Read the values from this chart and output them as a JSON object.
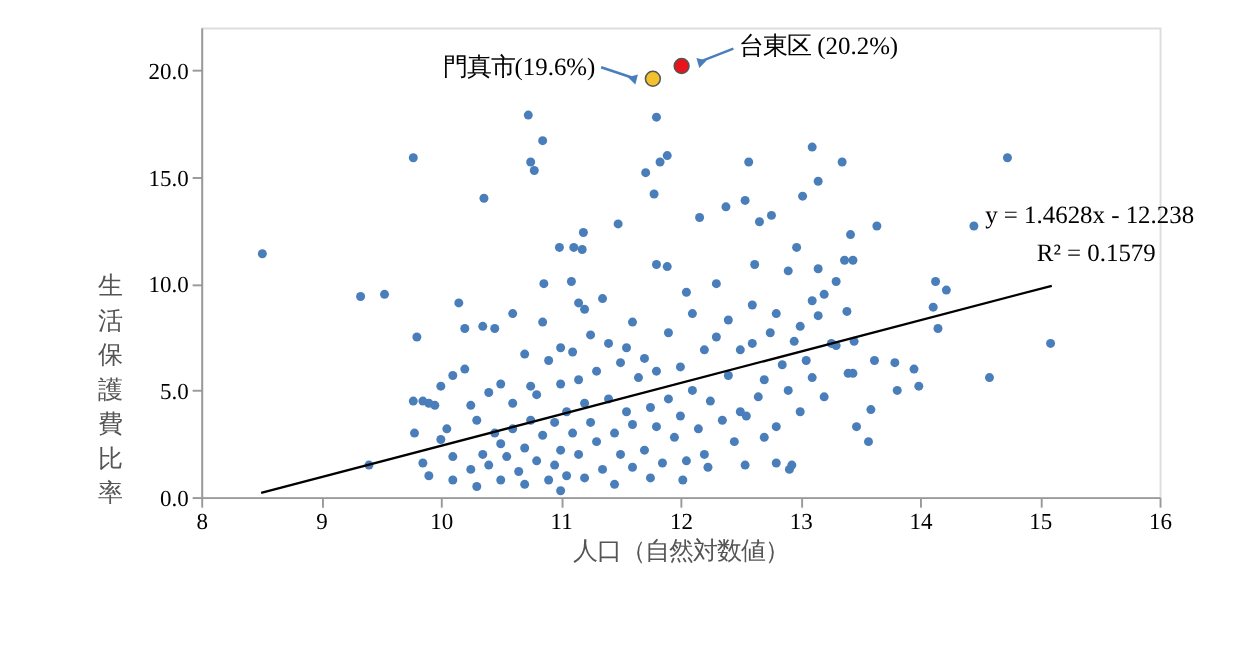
{
  "chart_data": {
    "type": "scatter",
    "xlabel": "人口（自然対数値）",
    "ylabel": "生活保護費比率",
    "xlim": [
      8,
      16
    ],
    "xticks": [
      8,
      9,
      10,
      11,
      12,
      13,
      14,
      15,
      16
    ],
    "ylim": [
      0,
      22
    ],
    "yticks": [
      {
        "value": 0,
        "label": "0.0"
      },
      {
        "value": 5,
        "label": "5.0"
      },
      {
        "value": 10,
        "label": "10.0"
      },
      {
        "value": 15,
        "label": "15.0"
      },
      {
        "value": 20,
        "label": "20.0"
      }
    ],
    "grid": false,
    "marker": "circle",
    "series": [
      {
        "color": "#4a7ebb",
        "x": [
          8.51,
          9.33,
          9.53,
          9.4,
          9.77,
          10.36,
          10.73,
          10.75,
          10.78,
          10.85,
          11.8,
          11.71,
          11.78,
          11.83,
          11.89,
          13.1,
          14.73,
          12.57,
          13.35,
          13.15,
          13.02,
          12.38,
          12.54,
          12.16,
          11.48,
          11.19,
          12.76,
          12.66,
          13.64,
          14.45,
          13.42,
          13.37,
          13.44,
          12.97,
          12.62,
          13.15,
          11.8,
          11.89,
          10.99,
          11.11,
          11.18,
          10.86,
          11.09,
          14.13,
          14.22,
          14.11,
          14.15,
          14.58,
          15.09,
          13.99,
          13.81,
          13.95,
          13.79,
          13.62,
          13.44,
          13.47,
          13.59,
          13.57,
          13.45,
          13.26,
          13.39,
          12.93,
          12.91,
          12.8,
          12.54,
          12.23,
          12.02,
          9.77,
          9.85,
          9.9,
          9.95,
          9.78,
          9.85,
          9.9,
          9.8,
          10.0,
          10.0,
          10.05,
          10.1,
          10.1,
          10.1,
          10.15,
          10.2,
          10.2,
          10.25,
          10.25,
          10.3,
          10.3,
          10.35,
          10.35,
          10.4,
          10.4,
          10.45,
          10.45,
          10.5,
          10.5,
          10.5,
          10.55,
          10.6,
          10.6,
          10.6,
          10.65,
          10.7,
          10.7,
          10.7,
          10.75,
          10.75,
          10.8,
          10.8,
          10.85,
          10.85,
          10.9,
          10.9,
          10.95,
          10.95,
          11.0,
          11.0,
          11.0,
          11.0,
          11.05,
          11.05,
          11.1,
          11.1,
          11.15,
          11.15,
          11.15,
          11.2,
          11.2,
          11.2,
          11.25,
          11.25,
          11.3,
          11.3,
          11.35,
          11.35,
          11.4,
          11.4,
          11.45,
          11.45,
          11.5,
          11.5,
          11.55,
          11.55,
          11.6,
          11.6,
          11.6,
          11.65,
          11.7,
          11.7,
          11.75,
          11.75,
          11.8,
          11.8,
          11.85,
          11.9,
          11.9,
          11.95,
          12.0,
          12.0,
          12.05,
          12.05,
          12.1,
          12.1,
          12.15,
          12.2,
          12.2,
          12.25,
          12.3,
          12.3,
          12.35,
          12.4,
          12.4,
          12.45,
          12.5,
          12.5,
          12.55,
          12.6,
          12.6,
          12.65,
          12.7,
          12.7,
          12.75,
          12.8,
          12.8,
          12.85,
          12.9,
          12.9,
          12.95,
          13.0,
          13.0,
          13.05,
          13.1,
          13.1,
          13.15,
          13.2,
          13.2,
          13.3,
          13.3,
          13.4
        ],
        "values": [
          11.4,
          9.4,
          9.5,
          1.5,
          15.9,
          14.0,
          17.9,
          15.7,
          15.3,
          16.7,
          17.8,
          15.2,
          14.2,
          15.7,
          16.0,
          16.4,
          15.9,
          15.7,
          15.7,
          14.8,
          14.1,
          13.6,
          13.9,
          13.1,
          12.8,
          12.4,
          13.2,
          12.9,
          12.7,
          12.7,
          12.3,
          11.1,
          11.1,
          11.7,
          10.9,
          10.7,
          10.9,
          10.8,
          11.7,
          11.7,
          11.6,
          10.0,
          10.1,
          10.1,
          9.7,
          8.9,
          7.9,
          5.6,
          7.2,
          5.2,
          5.0,
          6.0,
          6.3,
          6.4,
          5.8,
          3.3,
          4.1,
          2.6,
          7.3,
          7.2,
          8.7,
          1.5,
          1.3,
          1.6,
          1.5,
          1.4,
          0.8,
          4.5,
          4.5,
          4.4,
          4.3,
          3.0,
          1.6,
          1.0,
          7.5,
          5.2,
          2.7,
          3.2,
          1.9,
          0.8,
          5.7,
          9.1,
          7.9,
          6.0,
          4.3,
          1.3,
          3.6,
          0.5,
          8.0,
          2.0,
          4.9,
          1.5,
          7.9,
          3.0,
          5.3,
          2.5,
          0.8,
          1.9,
          4.4,
          8.6,
          3.2,
          1.2,
          6.7,
          2.3,
          0.6,
          5.2,
          3.6,
          1.7,
          4.8,
          8.2,
          2.9,
          0.8,
          6.4,
          3.5,
          1.5,
          7.0,
          5.3,
          2.2,
          0.3,
          4.0,
          1.0,
          6.8,
          3.0,
          9.1,
          5.5,
          2.0,
          8.8,
          4.4,
          0.9,
          3.5,
          7.6,
          2.6,
          5.9,
          9.3,
          1.3,
          4.6,
          7.2,
          3.0,
          0.6,
          6.3,
          2.0,
          4.0,
          7.0,
          1.4,
          8.2,
          3.4,
          5.6,
          2.2,
          6.5,
          4.2,
          0.9,
          3.3,
          5.9,
          1.6,
          7.7,
          4.6,
          2.8,
          6.1,
          3.8,
          9.6,
          1.7,
          8.6,
          5.0,
          3.2,
          6.9,
          2.0,
          4.5,
          10.0,
          7.5,
          3.6,
          5.7,
          8.3,
          2.6,
          6.9,
          4.0,
          3.8,
          7.2,
          9.0,
          4.7,
          5.5,
          2.8,
          7.7,
          8.6,
          3.3,
          6.2,
          10.6,
          5.0,
          7.3,
          8.0,
          4.0,
          6.4,
          9.2,
          5.6,
          8.5,
          4.7,
          9.5,
          7.1,
          10.1,
          5.8
        ]
      },
      {
        "color": "#f2c12e",
        "x": [
          11.77
        ],
        "values": [
          19.6
        ]
      },
      {
        "color": "#e8141b",
        "x": [
          12.01
        ],
        "values": [
          20.2
        ]
      },
      {
        "type": "line",
        "color": "#000000",
        "marker": "none",
        "line_style": "solid",
        "x": [
          8.5,
          15.1
        ],
        "values": [
          0.2,
          9.9
        ]
      }
    ],
    "annotations": [
      {
        "text": "門真市(19.6%)",
        "x": 11.77,
        "y": 19.6
      },
      {
        "text": "台東区 (20.2%)",
        "x": 12.01,
        "y": 20.2
      },
      "y = 1.4628x - 12.238",
      "R² = 0.1579"
    ]
  }
}
